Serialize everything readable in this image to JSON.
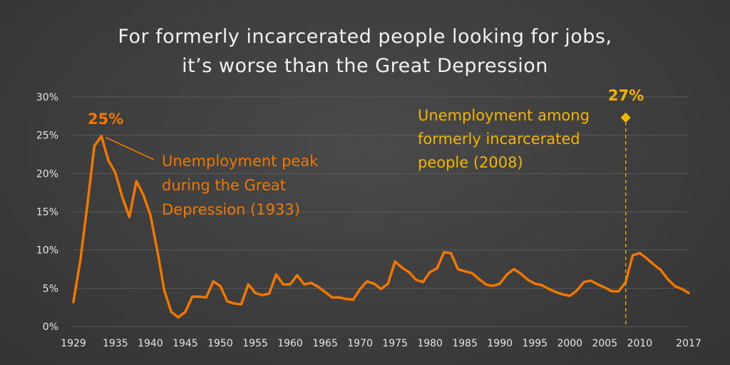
{
  "chart_data": {
    "type": "line",
    "title_lines": [
      "For formerly incarcerated people looking for jobs,",
      "it’s worse than the Great Depression"
    ],
    "xlabel": "",
    "ylabel": "",
    "xlim": [
      1929,
      2017
    ],
    "ylim": [
      0,
      30
    ],
    "x_tick_labels": [
      "1929",
      "1935",
      "1940",
      "1945",
      "1950",
      "1955",
      "1960",
      "1965",
      "1970",
      "1975",
      "1980",
      "1985",
      "1990",
      "1995",
      "2000",
      "2005",
      "2010",
      "2017"
    ],
    "y_tick_labels": [
      "0%",
      "5%",
      "10%",
      "15%",
      "20%",
      "25%",
      "30%"
    ],
    "grid": true,
    "x": [
      1929,
      1930,
      1931,
      1932,
      1933,
      1934,
      1935,
      1936,
      1937,
      1938,
      1939,
      1940,
      1941,
      1942,
      1943,
      1944,
      1945,
      1946,
      1947,
      1948,
      1949,
      1950,
      1951,
      1952,
      1953,
      1954,
      1955,
      1956,
      1957,
      1958,
      1959,
      1960,
      1961,
      1962,
      1963,
      1964,
      1965,
      1966,
      1967,
      1968,
      1969,
      1970,
      1971,
      1972,
      1973,
      1974,
      1975,
      1976,
      1977,
      1978,
      1979,
      1980,
      1981,
      1982,
      1983,
      1984,
      1985,
      1986,
      1987,
      1988,
      1989,
      1990,
      1991,
      1992,
      1993,
      1994,
      1995,
      1996,
      1997,
      1998,
      1999,
      2000,
      2001,
      2002,
      2003,
      2004,
      2005,
      2006,
      2007,
      2008,
      2009,
      2010,
      2011,
      2012,
      2013,
      2014,
      2015,
      2016,
      2017
    ],
    "values": [
      3.2,
      8.7,
      15.9,
      23.6,
      24.9,
      21.7,
      20.1,
      16.9,
      14.3,
      19.0,
      17.2,
      14.6,
      9.9,
      4.7,
      1.9,
      1.2,
      1.9,
      3.9,
      3.9,
      3.8,
      5.9,
      5.3,
      3.3,
      3.0,
      2.9,
      5.5,
      4.4,
      4.1,
      4.3,
      6.8,
      5.5,
      5.5,
      6.7,
      5.5,
      5.7,
      5.2,
      4.5,
      3.8,
      3.8,
      3.6,
      3.5,
      4.9,
      5.9,
      5.6,
      4.9,
      5.6,
      8.5,
      7.7,
      7.1,
      6.1,
      5.8,
      7.1,
      7.6,
      9.7,
      9.6,
      7.5,
      7.2,
      7.0,
      6.2,
      5.5,
      5.3,
      5.6,
      6.8,
      7.5,
      6.9,
      6.1,
      5.6,
      5.4,
      4.9,
      4.5,
      4.2,
      4.0,
      4.7,
      5.8,
      6.0,
      5.5,
      5.1,
      4.6,
      4.6,
      5.8,
      9.3,
      9.6,
      8.9,
      8.1,
      7.4,
      6.2,
      5.3,
      4.9,
      4.4
    ],
    "annotations": {
      "depression": {
        "value_label": "25%",
        "lines": [
          "Unemployment peak",
          "during the Great",
          "Depression (1933)"
        ],
        "x": 1933,
        "y": 24.9
      },
      "incarcerated": {
        "value_label": "27%",
        "lines": [
          "Unemployment among",
          "formerly incarcerated",
          "people (2008)"
        ],
        "x": 2008,
        "y": 27.3
      }
    },
    "colors": {
      "series": "#f07800",
      "incarcerated": "#f2b600",
      "grid": "#5a5a5a",
      "text": "#e6e6e6"
    }
  }
}
